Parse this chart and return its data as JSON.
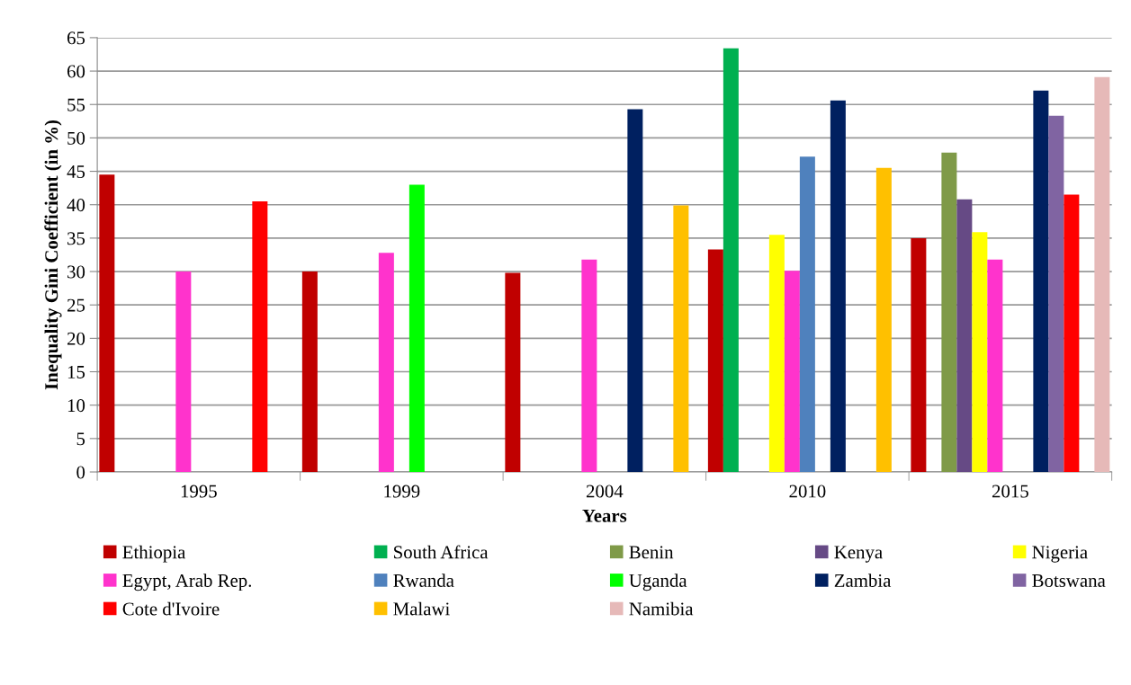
{
  "chart_data": {
    "type": "bar",
    "xlabel": "Years",
    "ylabel": "Inequality Gini Coefficient (in %)",
    "categories": [
      "1995",
      "1999",
      "2004",
      "2010",
      "2015"
    ],
    "series": [
      {
        "name": "Ethiopia",
        "color": "#c00000",
        "values": [
          44.5,
          30,
          29.8,
          33.3,
          35
        ]
      },
      {
        "name": "South Africa",
        "color": "#00b050",
        "values": [
          null,
          null,
          null,
          63.4,
          null
        ]
      },
      {
        "name": "Benin",
        "color": "#7f9a48",
        "values": [
          null,
          null,
          null,
          null,
          47.8
        ]
      },
      {
        "name": "Kenya",
        "color": "#664a85",
        "values": [
          null,
          null,
          null,
          null,
          40.8
        ]
      },
      {
        "name": "Nigeria",
        "color": "#ffff00",
        "values": [
          null,
          null,
          null,
          35.5,
          35.9
        ]
      },
      {
        "name": "Egypt, Arab Rep.",
        "color": "#ff33cc",
        "values": [
          30,
          32.8,
          31.8,
          30.1,
          31.8
        ]
      },
      {
        "name": "Rwanda",
        "color": "#4f81bd",
        "values": [
          null,
          null,
          null,
          47.2,
          null
        ]
      },
      {
        "name": "Uganda",
        "color": "#00ff00",
        "values": [
          null,
          43,
          null,
          null,
          null
        ]
      },
      {
        "name": "Zambia",
        "color": "#002060",
        "values": [
          null,
          null,
          54.3,
          55.6,
          57.1
        ]
      },
      {
        "name": "Botswana",
        "color": "#8064a2",
        "values": [
          null,
          null,
          null,
          null,
          53.3
        ]
      },
      {
        "name": "Cote d'Ivoire",
        "color": "#ff0000",
        "values": [
          40.5,
          null,
          null,
          null,
          41.5
        ]
      },
      {
        "name": "Malawi",
        "color": "#ffc000",
        "values": [
          null,
          null,
          39.9,
          45.5,
          null
        ]
      },
      {
        "name": "Namibia",
        "color": "#e6b9b8",
        "values": [
          null,
          null,
          null,
          null,
          59.1
        ]
      }
    ],
    "ylim": [
      0,
      65
    ],
    "yticks": [
      0,
      5,
      10,
      15,
      20,
      25,
      30,
      35,
      40,
      45,
      50,
      55,
      60,
      65
    ],
    "grid": "y",
    "legend": "bottom"
  }
}
